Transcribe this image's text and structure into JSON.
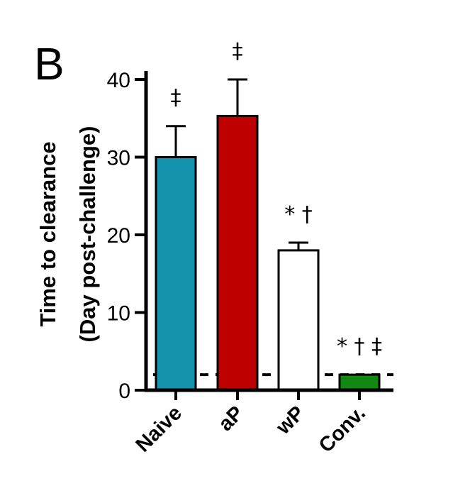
{
  "chart_data": {
    "type": "bar",
    "panel_label": "B",
    "ylabel_lines": [
      "Time to clearance",
      "(Day post-challenge)"
    ],
    "categories": [
      "Naive",
      "aP",
      "wP",
      "Conv."
    ],
    "values": [
      30,
      35.3,
      18,
      2
    ],
    "errors": [
      4,
      4.7,
      1,
      0
    ],
    "bar_colors": [
      "#1592ad",
      "#bf0000",
      "#ffffff",
      "#118811"
    ],
    "annotations": [
      "‡",
      "‡",
      "* †",
      "* † ‡"
    ],
    "ylim": [
      0,
      40
    ],
    "yticks": [
      0,
      10,
      20,
      30,
      40
    ],
    "reference_line": 2,
    "grid": false
  }
}
